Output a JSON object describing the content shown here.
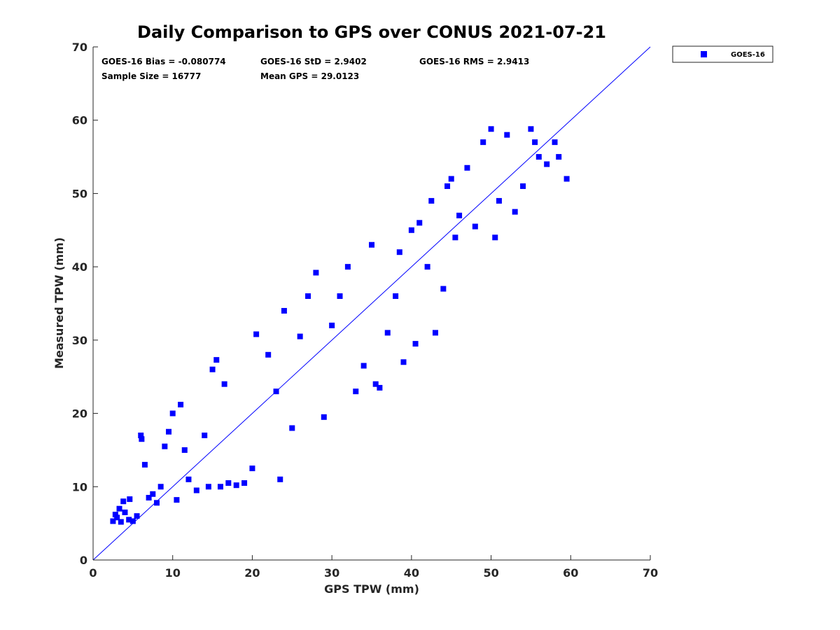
{
  "chart_data": {
    "type": "scatter",
    "title": "Daily Comparison to GPS over CONUS 2021-07-21",
    "xlabel": "GPS TPW (mm)",
    "ylabel": "Measured TPW (mm)",
    "xlim": [
      0,
      70
    ],
    "ylim": [
      0,
      70
    ],
    "xticks": [
      0,
      10,
      20,
      30,
      40,
      50,
      60,
      70
    ],
    "yticks": [
      0,
      10,
      20,
      30,
      40,
      50,
      60,
      70
    ],
    "grid": false,
    "legend_position": "top-right, outside plot area",
    "reference_line": {
      "type": "one-to-one",
      "from": [
        0,
        0
      ],
      "to": [
        70,
        70
      ],
      "color": "#0000ff"
    },
    "annotations": [
      "GOES-16 Bias = -0.080774",
      "GOES-16 StD = 2.9402",
      "GOES-16 RMS = 2.9413",
      "Sample Size = 16777",
      "Mean GPS = 29.0123"
    ],
    "series": [
      {
        "name": "GOES-16",
        "marker": "square",
        "color": "#0000ff",
        "points": [
          [
            2.5,
            5.3
          ],
          [
            3.0,
            5.8
          ],
          [
            3.5,
            5.2
          ],
          [
            4.0,
            6.5
          ],
          [
            4.5,
            5.5
          ],
          [
            3.8,
            8.0
          ],
          [
            4.6,
            8.3
          ],
          [
            5.5,
            6.0
          ],
          [
            2.8,
            6.2
          ],
          [
            3.3,
            7.0
          ],
          [
            5.0,
            5.3
          ],
          [
            6.0,
            17.0
          ],
          [
            6.1,
            16.5
          ],
          [
            6.5,
            13.0
          ],
          [
            7.0,
            8.5
          ],
          [
            7.5,
            9.0
          ],
          [
            8.0,
            7.8
          ],
          [
            8.5,
            10.0
          ],
          [
            9.0,
            15.5
          ],
          [
            9.5,
            17.5
          ],
          [
            10.0,
            20.0
          ],
          [
            10.5,
            8.2
          ],
          [
            11.0,
            21.2
          ],
          [
            11.5,
            15.0
          ],
          [
            12.0,
            11.0
          ],
          [
            13.0,
            9.5
          ],
          [
            14.0,
            17.0
          ],
          [
            14.5,
            10.0
          ],
          [
            15.0,
            26.0
          ],
          [
            15.5,
            27.3
          ],
          [
            16.0,
            10.0
          ],
          [
            16.5,
            24.0
          ],
          [
            17.0,
            10.5
          ],
          [
            18.0,
            10.2
          ],
          [
            19.0,
            10.5
          ],
          [
            20.0,
            12.5
          ],
          [
            20.5,
            30.8
          ],
          [
            22.0,
            28.0
          ],
          [
            23.0,
            23.0
          ],
          [
            23.5,
            11.0
          ],
          [
            24.0,
            34.0
          ],
          [
            25.0,
            18.0
          ],
          [
            26.0,
            30.5
          ],
          [
            27.0,
            36.0
          ],
          [
            28.0,
            39.2
          ],
          [
            29.0,
            19.5
          ],
          [
            30.0,
            32.0
          ],
          [
            31.0,
            36.0
          ],
          [
            32.0,
            40.0
          ],
          [
            33.0,
            23.0
          ],
          [
            34.0,
            26.5
          ],
          [
            35.0,
            43.0
          ],
          [
            35.5,
            24.0
          ],
          [
            36.0,
            23.5
          ],
          [
            37.0,
            31.0
          ],
          [
            38.0,
            36.0
          ],
          [
            38.5,
            42.0
          ],
          [
            39.0,
            27.0
          ],
          [
            40.0,
            45.0
          ],
          [
            40.5,
            29.5
          ],
          [
            41.0,
            46.0
          ],
          [
            42.0,
            40.0
          ],
          [
            42.5,
            49.0
          ],
          [
            43.0,
            31.0
          ],
          [
            44.0,
            37.0
          ],
          [
            44.5,
            51.0
          ],
          [
            45.0,
            52.0
          ],
          [
            45.5,
            44.0
          ],
          [
            46.0,
            47.0
          ],
          [
            47.0,
            53.5
          ],
          [
            48.0,
            45.5
          ],
          [
            49.0,
            57.0
          ],
          [
            50.0,
            58.8
          ],
          [
            50.5,
            44.0
          ],
          [
            51.0,
            49.0
          ],
          [
            52.0,
            58.0
          ],
          [
            53.0,
            47.5
          ],
          [
            54.0,
            51.0
          ],
          [
            55.0,
            58.8
          ],
          [
            55.5,
            57.0
          ],
          [
            56.0,
            55.0
          ],
          [
            57.0,
            54.0
          ],
          [
            58.0,
            57.0
          ],
          [
            58.5,
            55.0
          ],
          [
            59.5,
            52.0
          ]
        ]
      }
    ]
  },
  "legend": {
    "items": [
      {
        "label": "GOES-16",
        "color": "#0000ff"
      }
    ]
  }
}
